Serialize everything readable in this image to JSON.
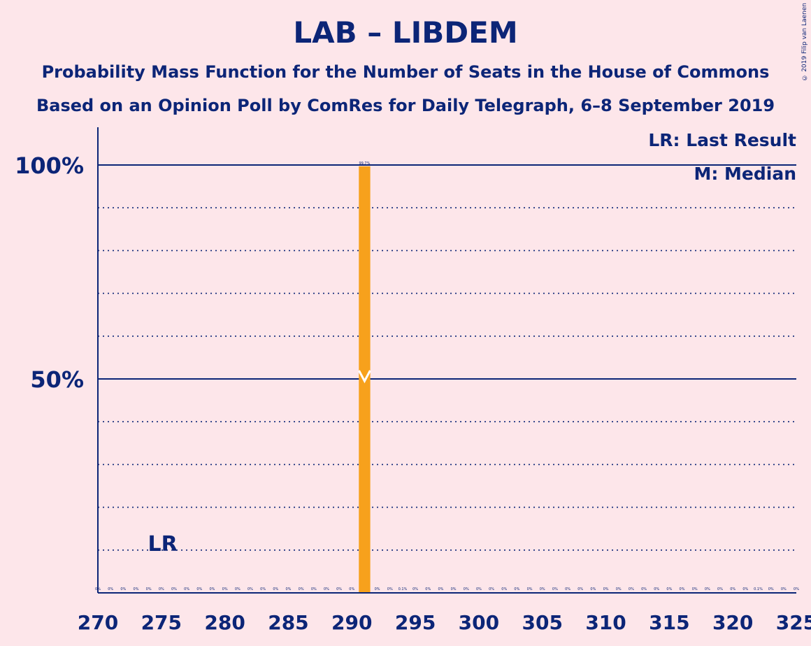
{
  "title": "LAB – LIBDEM",
  "subtitle1": "Probability Mass Function for the Number of Seats in the House of Commons",
  "subtitle2": "Based on an Opinion Poll by ComRes for Daily Telegraph, 6–8 September 2019",
  "copyright": "© 2019 Filip van Laenen",
  "legend": {
    "last_result": "LR: Last Result",
    "median": "M: Median"
  },
  "lr_marker": "LR",
  "colors": {
    "bar": "#f7a11c",
    "text": "#0c2577",
    "background": "#fde6ea"
  },
  "chart_data": {
    "type": "bar",
    "xlim": [
      270,
      325
    ],
    "ylim": [
      0,
      100
    ],
    "x_ticks": [
      "270",
      "275",
      "280",
      "285",
      "290",
      "295",
      "300",
      "305",
      "310",
      "315",
      "320",
      "325"
    ],
    "y_ticks": [
      "50%",
      "100%"
    ],
    "grid": "dotted every 10%, solid at 50% and 100%",
    "last_result_seat": 274,
    "median_seat": 291,
    "bars": [
      {
        "x": 270,
        "value": 0,
        "label": "0%"
      },
      {
        "x": 271,
        "value": 0,
        "label": "0%"
      },
      {
        "x": 272,
        "value": 0,
        "label": "0%"
      },
      {
        "x": 273,
        "value": 0,
        "label": "0%"
      },
      {
        "x": 274,
        "value": 0,
        "label": "0%"
      },
      {
        "x": 275,
        "value": 0,
        "label": "0%"
      },
      {
        "x": 276,
        "value": 0,
        "label": "0%"
      },
      {
        "x": 277,
        "value": 0,
        "label": "0%"
      },
      {
        "x": 278,
        "value": 0,
        "label": "0%"
      },
      {
        "x": 279,
        "value": 0,
        "label": "0%"
      },
      {
        "x": 280,
        "value": 0,
        "label": "0%"
      },
      {
        "x": 281,
        "value": 0,
        "label": "0%"
      },
      {
        "x": 282,
        "value": 0,
        "label": "0%"
      },
      {
        "x": 283,
        "value": 0,
        "label": "0%"
      },
      {
        "x": 284,
        "value": 0,
        "label": "0%"
      },
      {
        "x": 285,
        "value": 0,
        "label": "0%"
      },
      {
        "x": 286,
        "value": 0,
        "label": "0%"
      },
      {
        "x": 287,
        "value": 0,
        "label": "0%"
      },
      {
        "x": 288,
        "value": 0,
        "label": "0%"
      },
      {
        "x": 289,
        "value": 0,
        "label": "0%"
      },
      {
        "x": 290,
        "value": 0,
        "label": "0%"
      },
      {
        "x": 291,
        "value": 99.7,
        "label": "99.7%"
      },
      {
        "x": 292,
        "value": 0,
        "label": "0%"
      },
      {
        "x": 293,
        "value": 0,
        "label": "0%"
      },
      {
        "x": 294,
        "value": 0.1,
        "label": "0.1%"
      },
      {
        "x": 295,
        "value": 0,
        "label": "0%"
      },
      {
        "x": 296,
        "value": 0,
        "label": "0%"
      },
      {
        "x": 297,
        "value": 0,
        "label": "0%"
      },
      {
        "x": 298,
        "value": 0,
        "label": "0%"
      },
      {
        "x": 299,
        "value": 0,
        "label": "0%"
      },
      {
        "x": 300,
        "value": 0,
        "label": "0%"
      },
      {
        "x": 301,
        "value": 0,
        "label": "0%"
      },
      {
        "x": 302,
        "value": 0,
        "label": "0%"
      },
      {
        "x": 303,
        "value": 0,
        "label": "0%"
      },
      {
        "x": 304,
        "value": 0,
        "label": "0%"
      },
      {
        "x": 305,
        "value": 0,
        "label": "0%"
      },
      {
        "x": 306,
        "value": 0,
        "label": "0%"
      },
      {
        "x": 307,
        "value": 0,
        "label": "0%"
      },
      {
        "x": 308,
        "value": 0,
        "label": "0%"
      },
      {
        "x": 309,
        "value": 0,
        "label": "0%"
      },
      {
        "x": 310,
        "value": 0,
        "label": "0%"
      },
      {
        "x": 311,
        "value": 0,
        "label": "0%"
      },
      {
        "x": 312,
        "value": 0,
        "label": "0%"
      },
      {
        "x": 313,
        "value": 0,
        "label": "0%"
      },
      {
        "x": 314,
        "value": 0,
        "label": "0%"
      },
      {
        "x": 315,
        "value": 0,
        "label": "0%"
      },
      {
        "x": 316,
        "value": 0,
        "label": "0%"
      },
      {
        "x": 317,
        "value": 0,
        "label": "0%"
      },
      {
        "x": 318,
        "value": 0,
        "label": "0%"
      },
      {
        "x": 319,
        "value": 0,
        "label": "0%"
      },
      {
        "x": 320,
        "value": 0,
        "label": "0%"
      },
      {
        "x": 321,
        "value": 0,
        "label": "0%"
      },
      {
        "x": 322,
        "value": 0.1,
        "label": "0.1%"
      },
      {
        "x": 323,
        "value": 0,
        "label": "0%"
      },
      {
        "x": 324,
        "value": 0,
        "label": "0%"
      },
      {
        "x": 325,
        "value": 0,
        "label": "0%"
      }
    ]
  }
}
